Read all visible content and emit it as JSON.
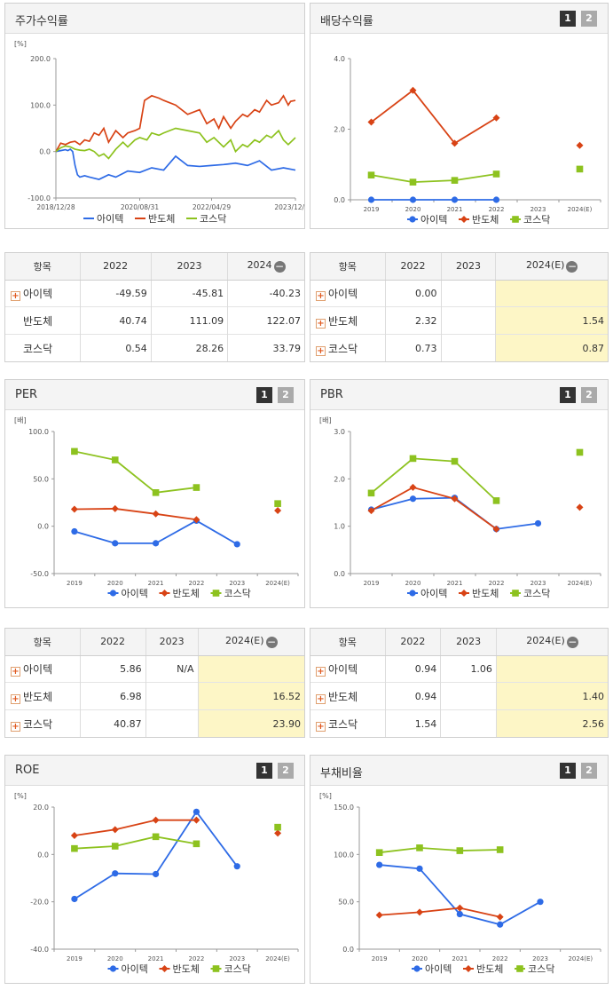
{
  "labels": {
    "page1": "1",
    "page2": "2",
    "minus": "−",
    "plus": "+"
  },
  "colors": {
    "itek": "#2e6be6",
    "bandoche": "#d84315",
    "kosdaq": "#8dc21f"
  },
  "legend": [
    "아이텍",
    "반도체",
    "코스닥"
  ],
  "tables": [
    {
      "title": "주가수익률 표",
      "headers": [
        "항목",
        "2022",
        "2023",
        "2024"
      ],
      "collapse": true,
      "rows": [
        {
          "name": "아이텍",
          "plus": true,
          "values": [
            "-49.59",
            "-45.81",
            "-40.23"
          ]
        },
        {
          "name": "반도체",
          "plus": false,
          "values": [
            "40.74",
            "111.09",
            "122.07"
          ]
        },
        {
          "name": "코스닥",
          "plus": false,
          "values": [
            "0.54",
            "28.26",
            "33.79"
          ]
        }
      ]
    },
    {
      "title": "배당수익률 표",
      "headers": [
        "항목",
        "2022",
        "2023",
        "2024(E)"
      ],
      "collapse": true,
      "rows": [
        {
          "name": "아이텍",
          "plus": true,
          "values": [
            "0.00",
            "",
            ""
          ]
        },
        {
          "name": "반도체",
          "plus": true,
          "values": [
            "2.32",
            "",
            "1.54"
          ]
        },
        {
          "name": "코스닥",
          "plus": true,
          "values": [
            "0.73",
            "",
            "0.87"
          ]
        }
      ]
    },
    {
      "title": "PER 표",
      "headers": [
        "항목",
        "2022",
        "2023",
        "2024(E)"
      ],
      "collapse": true,
      "rows": [
        {
          "name": "아이텍",
          "plus": true,
          "values": [
            "5.86",
            "N/A",
            ""
          ]
        },
        {
          "name": "반도체",
          "plus": true,
          "values": [
            "6.98",
            "",
            "16.52"
          ]
        },
        {
          "name": "코스닥",
          "plus": true,
          "values": [
            "40.87",
            "",
            "23.90"
          ]
        }
      ]
    },
    {
      "title": "PBR 표",
      "headers": [
        "항목",
        "2022",
        "2023",
        "2024(E)"
      ],
      "collapse": true,
      "rows": [
        {
          "name": "아이텍",
          "plus": true,
          "values": [
            "0.94",
            "1.06",
            ""
          ]
        },
        {
          "name": "반도체",
          "plus": true,
          "values": [
            "0.94",
            "",
            "1.40"
          ]
        },
        {
          "name": "코스닥",
          "plus": true,
          "values": [
            "1.54",
            "",
            "2.56"
          ]
        }
      ]
    }
  ],
  "chart_data": [
    {
      "title": "주가수익률",
      "type": "line",
      "unit": "[%]",
      "yticks": [
        "200.0",
        "100.0",
        "0.0",
        "-100.0"
      ],
      "ylim": [
        -100,
        200
      ],
      "xticks": [
        "2018/12/28",
        "2020/08/31",
        "2022/04/29",
        "2023/12/28"
      ],
      "series": [
        {
          "name": "아이텍",
          "x": [
            0,
            2,
            4,
            5,
            6,
            7,
            8,
            9,
            10,
            12,
            14,
            18,
            22,
            25,
            30,
            35,
            40,
            45,
            50,
            55,
            60,
            65,
            70,
            75,
            80,
            85,
            90,
            95,
            100
          ],
          "values": [
            0,
            2,
            4,
            2,
            5,
            0,
            -30,
            -50,
            -55,
            -52,
            -55,
            -60,
            -50,
            -55,
            -42,
            -45,
            -35,
            -40,
            -10,
            -30,
            -32,
            -30,
            -28,
            -25,
            -30,
            -20,
            -40,
            -35,
            -40
          ]
        },
        {
          "name": "반도체",
          "x": [
            0,
            2,
            4,
            6,
            8,
            10,
            12,
            14,
            16,
            18,
            20,
            22,
            25,
            28,
            30,
            33,
            35,
            37,
            40,
            43,
            45,
            50,
            55,
            60,
            63,
            66,
            68,
            70,
            73,
            75,
            78,
            80,
            83,
            85,
            88,
            90,
            93,
            95,
            97,
            98,
            100
          ],
          "values": [
            0,
            18,
            15,
            20,
            22,
            15,
            25,
            22,
            40,
            35,
            50,
            20,
            45,
            30,
            40,
            45,
            50,
            110,
            120,
            115,
            110,
            100,
            80,
            90,
            60,
            70,
            50,
            75,
            50,
            65,
            80,
            75,
            90,
            85,
            110,
            100,
            105,
            120,
            100,
            108,
            110
          ]
        },
        {
          "name": "코스닥",
          "x": [
            0,
            2,
            4,
            6,
            8,
            10,
            12,
            14,
            16,
            18,
            20,
            22,
            25,
            28,
            30,
            33,
            35,
            38,
            40,
            43,
            45,
            50,
            55,
            60,
            63,
            66,
            70,
            73,
            75,
            78,
            80,
            83,
            85,
            88,
            90,
            93,
            95,
            97,
            100
          ],
          "values": [
            0,
            8,
            12,
            10,
            5,
            3,
            2,
            5,
            0,
            -10,
            -5,
            -15,
            5,
            20,
            10,
            25,
            30,
            25,
            40,
            35,
            40,
            50,
            45,
            40,
            20,
            30,
            10,
            25,
            0,
            15,
            10,
            25,
            20,
            35,
            30,
            45,
            25,
            15,
            30
          ]
        }
      ]
    },
    {
      "title": "배당수익률",
      "type": "line",
      "unit": "",
      "yticks": [
        "4.0",
        "2.0",
        "0.0"
      ],
      "ylim": [
        0,
        4
      ],
      "xticks": [
        "2019",
        "2020",
        "2021",
        "2022",
        "2023",
        "2024(E)"
      ],
      "series": [
        {
          "name": "아이텍",
          "values": [
            0.0,
            0.0,
            0.0,
            0.0,
            null,
            null
          ]
        },
        {
          "name": "반도체",
          "values": [
            2.2,
            3.1,
            1.6,
            2.32,
            null,
            1.54
          ]
        },
        {
          "name": "코스닥",
          "values": [
            0.7,
            0.5,
            0.55,
            0.73,
            null,
            0.87
          ]
        }
      ]
    },
    {
      "title": "PER",
      "type": "line",
      "unit": "[배]",
      "yticks": [
        "100.0",
        "50.0",
        "0.0",
        "-50.0"
      ],
      "ylim": [
        -50,
        100
      ],
      "xticks": [
        "2019",
        "2020",
        "2021",
        "2022",
        "2023",
        "2024(E)"
      ],
      "series": [
        {
          "name": "아이텍",
          "values": [
            -5.5,
            -18,
            -18,
            5.86,
            -19,
            null
          ]
        },
        {
          "name": "반도체",
          "values": [
            18,
            18.5,
            13,
            6.98,
            null,
            16.52
          ]
        },
        {
          "name": "코스닥",
          "values": [
            79,
            70,
            35.5,
            40.87,
            null,
            23.9
          ]
        }
      ]
    },
    {
      "title": "PBR",
      "type": "line",
      "unit": "[배]",
      "yticks": [
        "3.0",
        "2.0",
        "1.0",
        "0.0"
      ],
      "ylim": [
        0,
        3
      ],
      "xticks": [
        "2019",
        "2020",
        "2021",
        "2022",
        "2023",
        "2024(E)"
      ],
      "series": [
        {
          "name": "아이텍",
          "values": [
            1.35,
            1.58,
            1.6,
            0.94,
            1.06,
            null
          ]
        },
        {
          "name": "반도체",
          "values": [
            1.33,
            1.82,
            1.58,
            0.94,
            null,
            1.4
          ]
        },
        {
          "name": "코스닥",
          "values": [
            1.7,
            2.43,
            2.37,
            1.54,
            null,
            2.56
          ]
        }
      ]
    },
    {
      "title": "ROE",
      "type": "line",
      "unit": "[%]",
      "yticks": [
        "20.0",
        "0.0",
        "-20.0",
        "-40.0"
      ],
      "ylim": [
        -40,
        20
      ],
      "xticks": [
        "2019",
        "2020",
        "2021",
        "2022",
        "2023",
        "2024(E)"
      ],
      "series": [
        {
          "name": "아이텍",
          "values": [
            -18.8,
            -8,
            -8.3,
            18,
            -5,
            null
          ]
        },
        {
          "name": "반도체",
          "values": [
            8,
            10.5,
            14.5,
            14.5,
            null,
            9
          ]
        },
        {
          "name": "코스닥",
          "values": [
            2.5,
            3.5,
            7.5,
            4.5,
            null,
            11.5
          ]
        }
      ]
    },
    {
      "title": "부채비율",
      "type": "line",
      "unit": "[%]",
      "yticks": [
        "150.0",
        "100.0",
        "50.0",
        "0.0"
      ],
      "ylim": [
        0,
        150
      ],
      "xticks": [
        "2019",
        "2020",
        "2021",
        "2022",
        "2023",
        "2024(E)"
      ],
      "series": [
        {
          "name": "아이텍",
          "values": [
            89,
            85,
            37,
            26,
            50,
            null
          ]
        },
        {
          "name": "반도체",
          "values": [
            36,
            39,
            43.5,
            34,
            null,
            null
          ]
        },
        {
          "name": "코스닥",
          "values": [
            102,
            107,
            104,
            105,
            null,
            null
          ]
        }
      ]
    }
  ]
}
